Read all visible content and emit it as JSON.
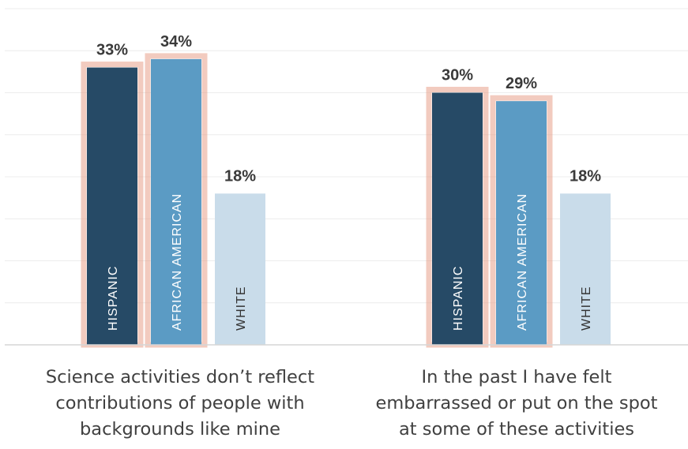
{
  "chart_data": {
    "type": "bar",
    "categories": [
      "Science activities don’t reflect\ncontributions of people with\nbackgrounds like mine",
      "In the past I have felt\nembarrassed or put on the spot\nat some of these activities"
    ],
    "series": [
      {
        "name": "HISPANIC",
        "values": [
          33,
          30
        ],
        "color": "#264a66",
        "highlight": true
      },
      {
        "name": "AFRICAN AMERICAN",
        "values": [
          34,
          29
        ],
        "color": "#5b9bc4",
        "highlight": true
      },
      {
        "name": "WHITE",
        "values": [
          18,
          18
        ],
        "color": "#c9dcea",
        "highlight": false
      }
    ],
    "value_labels": [
      [
        "33%",
        "30%"
      ],
      [
        "34%",
        "29%"
      ],
      [
        "18%",
        "18%"
      ]
    ],
    "ylim": [
      0,
      40
    ],
    "grid": true,
    "legend": "none",
    "glow_color": "#e8a08a"
  }
}
